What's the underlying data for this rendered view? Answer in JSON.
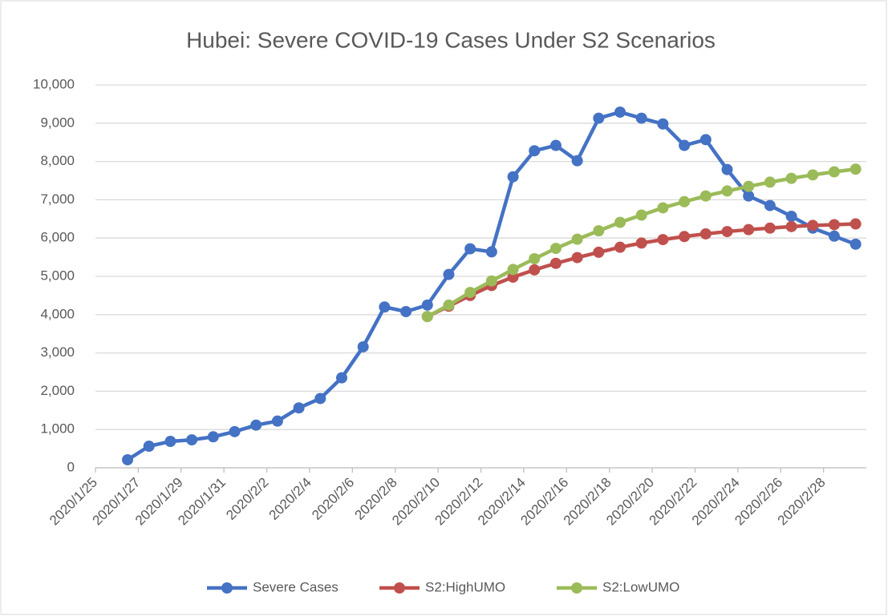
{
  "chart_data": {
    "type": "line",
    "title": "Hubei: Severe COVID-19 Cases Under S2 Scenarios",
    "x": [
      "2020/1/26",
      "2020/1/27",
      "2020/1/28",
      "2020/1/29",
      "2020/1/30",
      "2020/1/31",
      "2020/2/1",
      "2020/2/2",
      "2020/2/3",
      "2020/2/4",
      "2020/2/5",
      "2020/2/6",
      "2020/2/7",
      "2020/2/8",
      "2020/2/9",
      "2020/2/10",
      "2020/2/11",
      "2020/2/12",
      "2020/2/13",
      "2020/2/14",
      "2020/2/15",
      "2020/2/16",
      "2020/2/17",
      "2020/2/18",
      "2020/2/19",
      "2020/2/20",
      "2020/2/21",
      "2020/2/22",
      "2020/2/23",
      "2020/2/24",
      "2020/2/25",
      "2020/2/26",
      "2020/2/27",
      "2020/2/28",
      "2020/2/29"
    ],
    "series": [
      {
        "name": "Severe Cases",
        "color": "#4472c4",
        "values": [
          210,
          565,
          690,
          730,
          810,
          945,
          1115,
          1220,
          1565,
          1810,
          2350,
          3160,
          4200,
          4080,
          4250,
          5050,
          5720,
          5640,
          7600,
          8280,
          8420,
          8020,
          9130,
          9290,
          9130,
          8980,
          8420,
          8570,
          7790,
          7100,
          6850,
          6570,
          6260,
          6050,
          5840
        ]
      },
      {
        "name": "S2:HighUMO",
        "color": "#c0504d",
        "values": [
          null,
          null,
          null,
          null,
          null,
          null,
          null,
          null,
          null,
          null,
          null,
          null,
          null,
          null,
          3950,
          4220,
          4500,
          4760,
          4980,
          5170,
          5340,
          5490,
          5630,
          5760,
          5870,
          5960,
          6040,
          6110,
          6170,
          6220,
          6260,
          6300,
          6330,
          6350,
          6370
        ]
      },
      {
        "name": "S2:LowUMO",
        "color": "#9bbb59",
        "values": [
          null,
          null,
          null,
          null,
          null,
          null,
          null,
          null,
          null,
          null,
          null,
          null,
          null,
          null,
          3950,
          4250,
          4580,
          4880,
          5180,
          5460,
          5730,
          5970,
          6190,
          6410,
          6600,
          6790,
          6950,
          7100,
          7230,
          7350,
          7460,
          7560,
          7650,
          7730,
          7800
        ]
      }
    ],
    "xlim": [
      "2020/1/25",
      "2020/3/1"
    ],
    "xticks": [
      "2020/1/25",
      "2020/1/27",
      "2020/1/29",
      "2020/1/31",
      "2020/2/2",
      "2020/2/4",
      "2020/2/6",
      "2020/2/8",
      "2020/2/10",
      "2020/2/12",
      "2020/2/14",
      "2020/2/16",
      "2020/2/18",
      "2020/2/20",
      "2020/2/22",
      "2020/2/24",
      "2020/2/26",
      "2020/2/28"
    ],
    "ylim": [
      0,
      10000
    ],
    "yticks": [
      0,
      {
        "value": 1000,
        "label": "1,000"
      },
      {
        "value": 2000,
        "label": "2,000"
      },
      {
        "value": 3000,
        "label": "3,000"
      },
      {
        "value": 4000,
        "label": "4,000"
      },
      {
        "value": 5000,
        "label": "5,000"
      },
      {
        "value": 6000,
        "label": "6,000"
      },
      {
        "value": 7000,
        "label": "7,000"
      },
      {
        "value": 8000,
        "label": "8,000"
      },
      {
        "value": 9000,
        "label": "9,000"
      },
      {
        "value": 10000,
        "label": "10,000"
      }
    ],
    "grid": true,
    "legend": "bottom"
  }
}
